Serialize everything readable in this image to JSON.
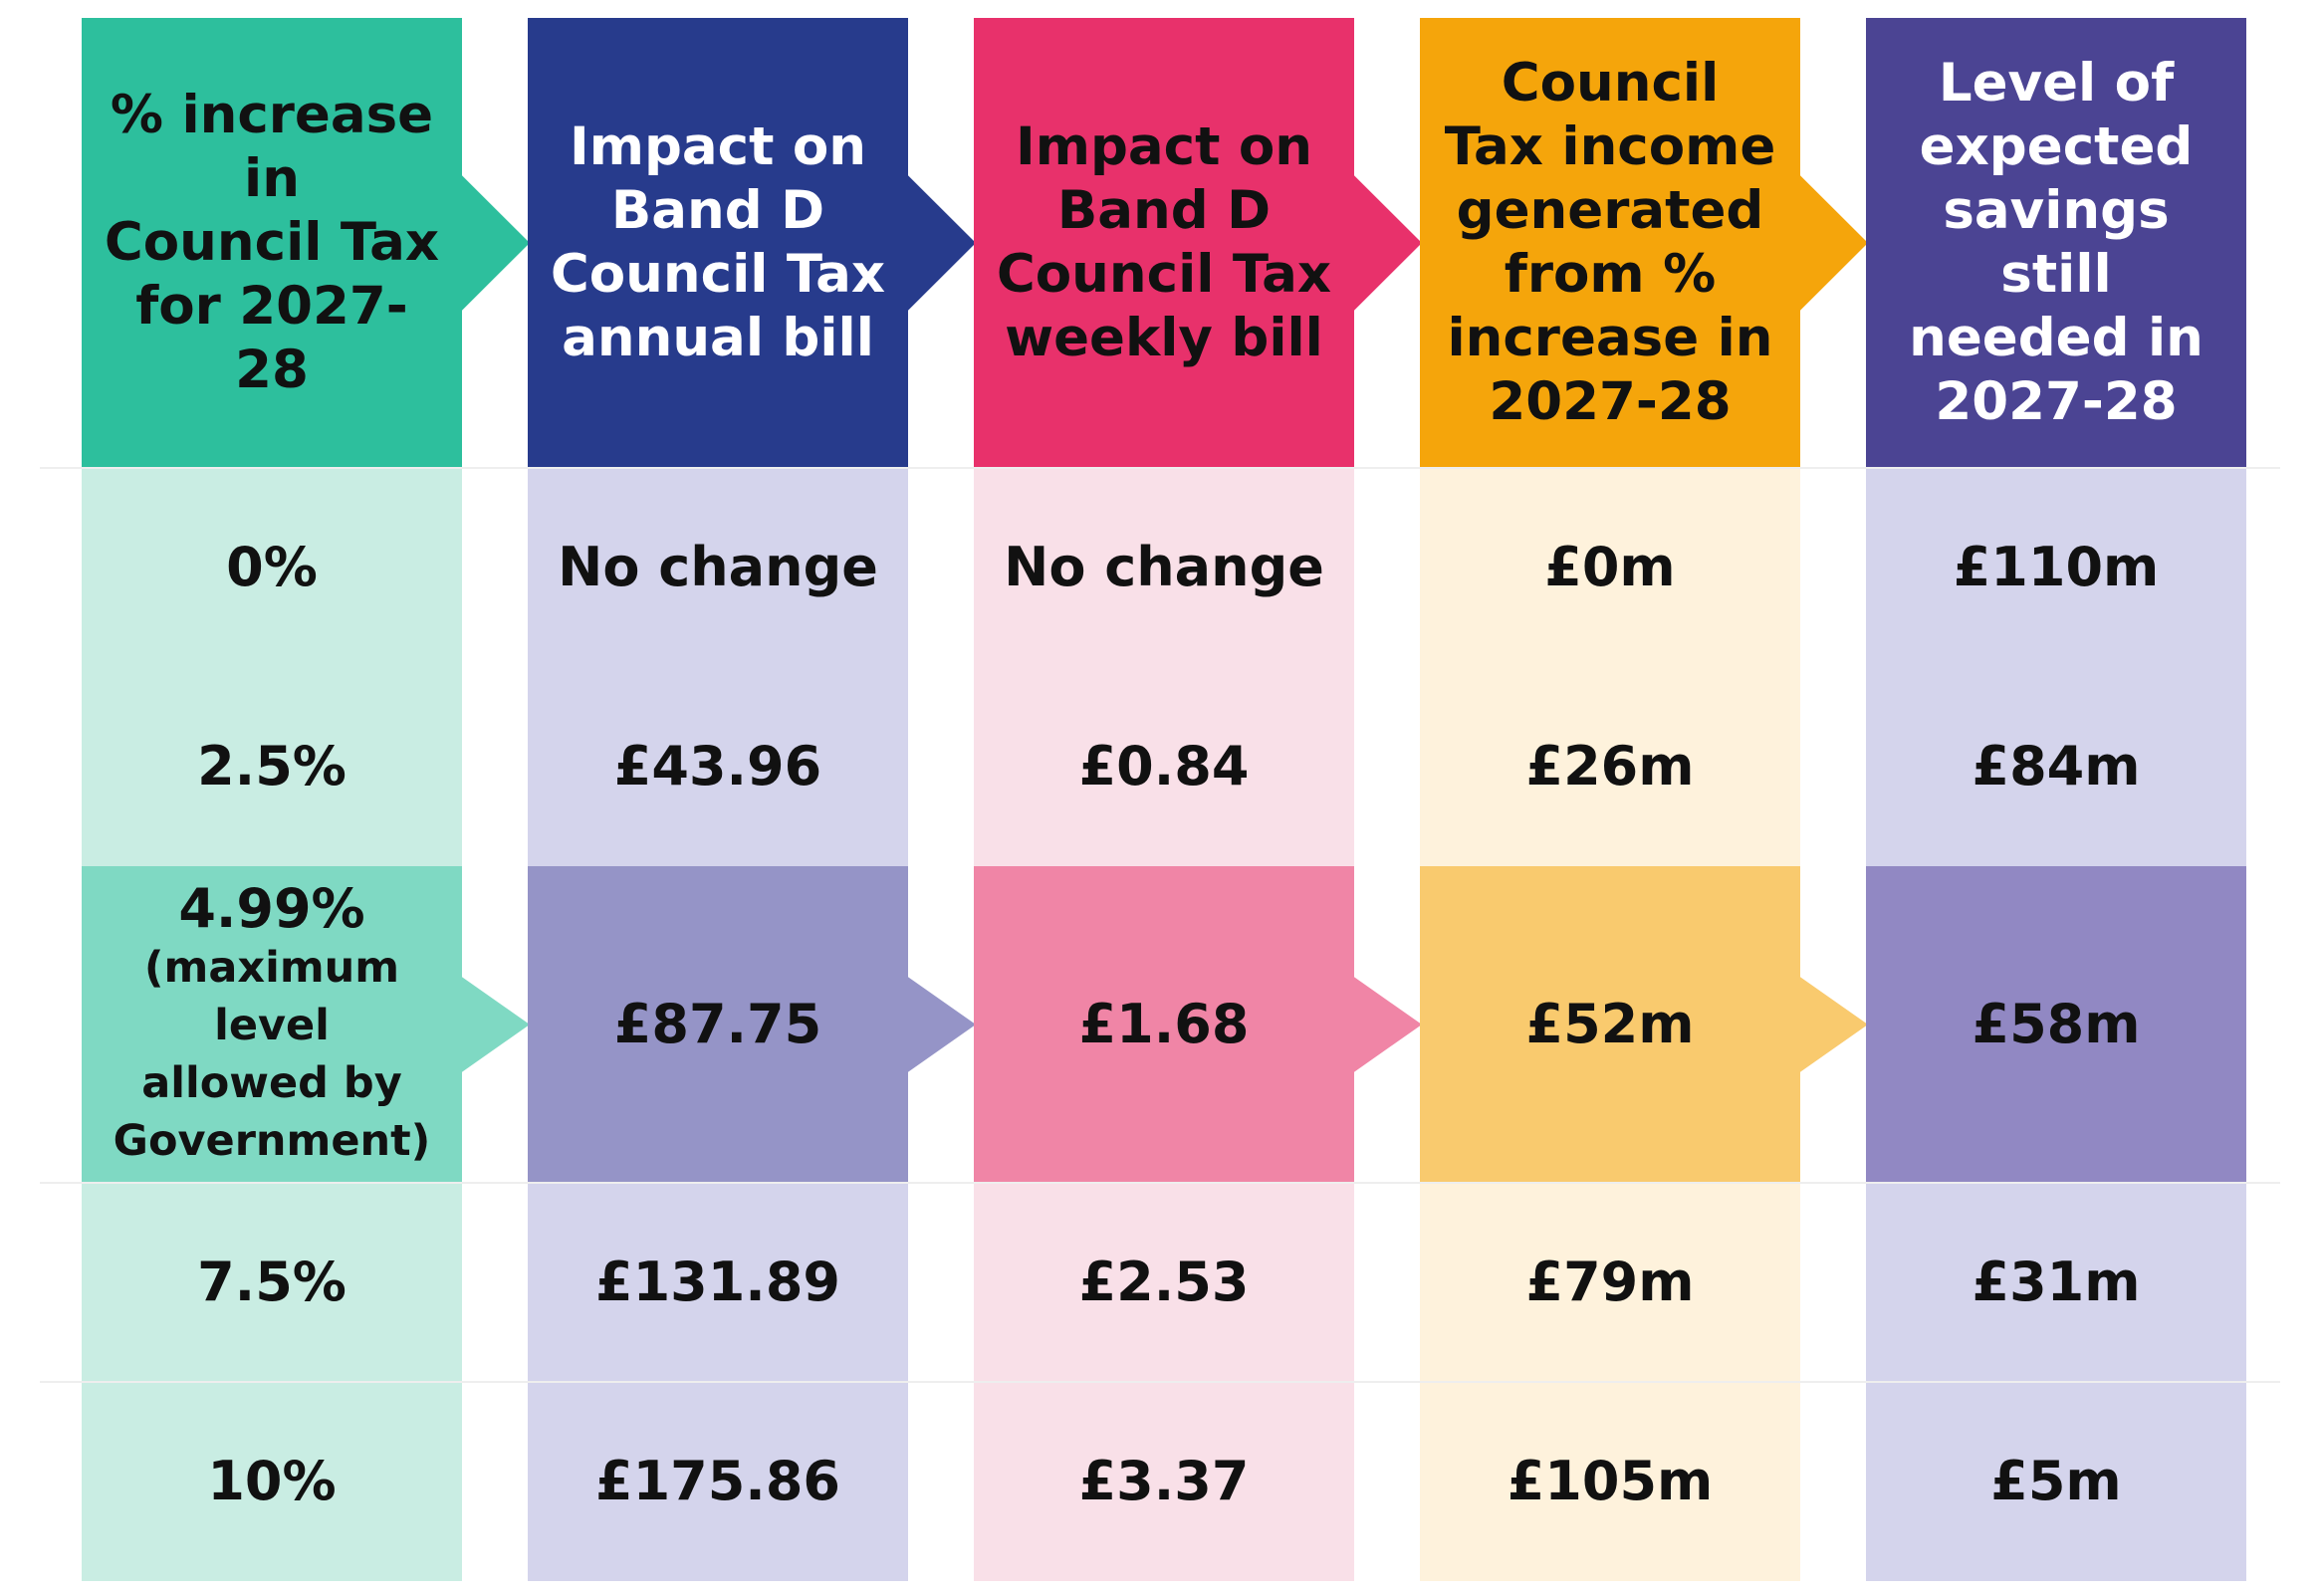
{
  "colors": {
    "white": "#ffffff",
    "separator": "#eeeeee",
    "columns": [
      {
        "header": "#2dbf9d",
        "light": "#c9ede3",
        "highlight": "#7fd9c3",
        "header_text": "#111111"
      },
      {
        "header": "#273b8c",
        "light": "#d4d4ec",
        "highlight": "#9594c7",
        "header_text": "#ffffff"
      },
      {
        "header": "#e8316b",
        "light": "#f9e0e8",
        "highlight": "#f085a6",
        "header_text": "#111111"
      },
      {
        "header": "#f5a50b",
        "light": "#fef2dc",
        "highlight": "#f9ca6e",
        "header_text": "#111111"
      },
      {
        "header": "#4b4493",
        "light": "#d4d4ec",
        "highlight": "#9188c3",
        "header_text": "#ffffff"
      }
    ]
  },
  "chart_data": {
    "type": "table",
    "columns": [
      {
        "header": [
          "% increase in",
          "Council Tax",
          "for 2027-28"
        ]
      },
      {
        "header": [
          "Impact on",
          "Band D",
          "Council Tax",
          "annual bill"
        ]
      },
      {
        "header": [
          "Impact on",
          "Band D",
          "Council Tax",
          "weekly bill"
        ]
      },
      {
        "header": [
          "Council",
          "Tax income",
          "generated",
          "from %",
          "increase in",
          "2027-28"
        ]
      },
      {
        "header": [
          "Level of",
          "expected",
          "savings still",
          "needed in",
          "2027-28"
        ]
      }
    ],
    "rows": [
      {
        "cells": [
          "0%",
          "No change",
          "No change",
          "£0m",
          "£110m"
        ],
        "highlight": false
      },
      {
        "cells": [
          "2.5%",
          "£43.96",
          "£0.84",
          "£26m",
          "£84m"
        ],
        "highlight": false
      },
      {
        "cells": [
          "4.99%",
          "£87.75",
          "£1.68",
          "£52m",
          "£58m"
        ],
        "highlight": true,
        "note": [
          "(maximum level",
          "allowed by",
          "Government)"
        ]
      },
      {
        "cells": [
          "7.5%",
          "£131.89",
          "£2.53",
          "£79m",
          "£31m"
        ],
        "highlight": false
      },
      {
        "cells": [
          "10%",
          "£175.86",
          "£3.37",
          "£105m",
          "£5m"
        ],
        "highlight": false
      }
    ]
  }
}
